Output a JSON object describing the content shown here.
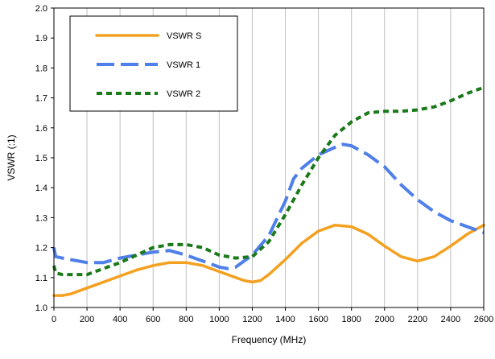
{
  "chart_data": {
    "type": "line",
    "title": "",
    "xlabel": "Frequency (MHz)",
    "ylabel": "VSWR (:1)",
    "xlim": [
      0,
      2600
    ],
    "ylim": [
      1.0,
      2.0
    ],
    "xticks": [
      0,
      200,
      400,
      600,
      800,
      1000,
      1200,
      1400,
      1600,
      1800,
      2000,
      2200,
      2400,
      2600
    ],
    "xtick_labels": [
      "0",
      "200",
      "400",
      "600",
      "800",
      "1000",
      "1200",
      "1400",
      "1600",
      "1800",
      "2000",
      "2200",
      "2400",
      "2600"
    ],
    "yticks": [
      1.0,
      1.1,
      1.2,
      1.3,
      1.4,
      1.5,
      1.6,
      1.7,
      1.8,
      1.9,
      2.0
    ],
    "ytick_labels": [
      "1.0",
      "1.1",
      "1.2",
      "1.3",
      "1.4",
      "1.5",
      "1.6",
      "1.7",
      "1.8",
      "1.9",
      "2.0"
    ],
    "grid": {
      "vertical": true,
      "horizontal": false,
      "color": "#c0c0c0"
    },
    "legend_position": "top-left",
    "series": [
      {
        "name": "VSWR S",
        "color": "#f4a020",
        "style": "solid",
        "x": [
          0,
          50,
          100,
          200,
          300,
          400,
          500,
          600,
          700,
          800,
          900,
          1000,
          1100,
          1150,
          1200,
          1250,
          1300,
          1400,
          1500,
          1600,
          1700,
          1800,
          1900,
          2000,
          2100,
          2200,
          2300,
          2400,
          2500,
          2600
        ],
        "y": [
          1.04,
          1.04,
          1.045,
          1.065,
          1.085,
          1.105,
          1.125,
          1.14,
          1.15,
          1.15,
          1.14,
          1.12,
          1.1,
          1.09,
          1.085,
          1.09,
          1.11,
          1.16,
          1.215,
          1.255,
          1.275,
          1.27,
          1.245,
          1.205,
          1.17,
          1.155,
          1.17,
          1.205,
          1.245,
          1.275
        ]
      },
      {
        "name": "VSWR 1",
        "color": "#4f7fe8",
        "style": "dashed",
        "x": [
          0,
          10,
          50,
          100,
          200,
          300,
          400,
          500,
          600,
          700,
          800,
          900,
          1000,
          1050,
          1100,
          1200,
          1300,
          1400,
          1450,
          1500,
          1600,
          1700,
          1750,
          1800,
          1900,
          2000,
          2100,
          2200,
          2300,
          2400,
          2500,
          2600
        ],
        "y": [
          1.2,
          1.17,
          1.165,
          1.16,
          1.15,
          1.15,
          1.165,
          1.175,
          1.185,
          1.19,
          1.175,
          1.155,
          1.135,
          1.13,
          1.135,
          1.175,
          1.24,
          1.355,
          1.43,
          1.465,
          1.51,
          1.535,
          1.545,
          1.54,
          1.51,
          1.47,
          1.41,
          1.36,
          1.32,
          1.29,
          1.27,
          1.25
        ]
      },
      {
        "name": "VSWR 2",
        "color": "#1a7a1a",
        "style": "dotted",
        "x": [
          0,
          10,
          50,
          100,
          200,
          300,
          400,
          500,
          600,
          700,
          800,
          900,
          1000,
          1100,
          1200,
          1300,
          1400,
          1500,
          1600,
          1700,
          1800,
          1900,
          2000,
          2100,
          2200,
          2300,
          2400,
          2500,
          2600
        ],
        "y": [
          1.14,
          1.115,
          1.11,
          1.11,
          1.11,
          1.13,
          1.15,
          1.175,
          1.2,
          1.21,
          1.21,
          1.2,
          1.175,
          1.165,
          1.17,
          1.22,
          1.31,
          1.41,
          1.5,
          1.575,
          1.62,
          1.65,
          1.655,
          1.655,
          1.66,
          1.67,
          1.69,
          1.715,
          1.735
        ]
      }
    ]
  }
}
